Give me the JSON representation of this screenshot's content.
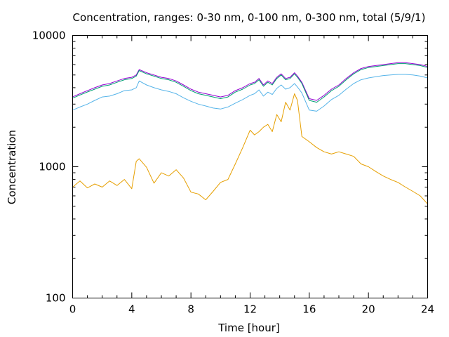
{
  "chart_data": {
    "type": "line",
    "title": "Concentration, ranges: 0-30 nm, 0-100 nm, 0-300 nm, total (5/9/1)",
    "xlabel": "Time [hour]",
    "ylabel": "Concentration",
    "xlim": [
      0,
      24
    ],
    "ylim": [
      100,
      10000
    ],
    "yscale": "log",
    "grid": false,
    "x_ticks": [
      0,
      4,
      8,
      12,
      16,
      20,
      24
    ],
    "x_tick_labels": [
      "0",
      "4",
      "8",
      "12",
      "16",
      "20",
      "24"
    ],
    "y_ticks": [
      100,
      1000,
      10000
    ],
    "y_tick_labels": [
      "100",
      "1000",
      "10000"
    ],
    "x": [
      0,
      0.5,
      1,
      1.5,
      2,
      2.5,
      3,
      3.5,
      4,
      4.3,
      4.5,
      5,
      5.5,
      6,
      6.5,
      7,
      7.5,
      8,
      8.5,
      9,
      9.5,
      10,
      10.5,
      11,
      11.5,
      12,
      12.3,
      12.6,
      12.9,
      13.2,
      13.5,
      13.8,
      14.1,
      14.4,
      14.7,
      15,
      15.2,
      15.5,
      16,
      16.5,
      17,
      17.5,
      18,
      18.5,
      19,
      19.5,
      20,
      20.5,
      21,
      21.5,
      22,
      22.5,
      23,
      23.5,
      24
    ],
    "series": [
      {
        "color": "#9400d3",
        "values": [
          3400,
          3600,
          3800,
          4000,
          4200,
          4300,
          4500,
          4700,
          4800,
          5000,
          5500,
          5200,
          5000,
          4800,
          4700,
          4500,
          4200,
          3900,
          3700,
          3600,
          3500,
          3400,
          3500,
          3800,
          4000,
          4300,
          4400,
          4700,
          4200,
          4500,
          4300,
          4800,
          5100,
          4700,
          4800,
          5200,
          4900,
          4400,
          3300,
          3200,
          3500,
          3900,
          4200,
          4700,
          5200,
          5600,
          5800,
          5900,
          6000,
          6100,
          6200,
          6200,
          6100,
          6000,
          5800
        ]
      },
      {
        "color": "#009e73",
        "values": [
          3330,
          3520,
          3710,
          3900,
          4100,
          4200,
          4400,
          4600,
          4700,
          4900,
          5400,
          5100,
          4900,
          4700,
          4600,
          4400,
          4100,
          3800,
          3600,
          3500,
          3400,
          3300,
          3400,
          3700,
          3900,
          4200,
          4300,
          4600,
          4100,
          4400,
          4200,
          4700,
          5000,
          4600,
          4700,
          5100,
          4800,
          4300,
          3200,
          3100,
          3400,
          3800,
          4100,
          4600,
          5100,
          5500,
          5700,
          5800,
          5900,
          6000,
          6100,
          6100,
          6000,
          5900,
          5700
        ]
      },
      {
        "color": "#56b4e9",
        "values": [
          2700,
          2850,
          3000,
          3200,
          3400,
          3450,
          3600,
          3800,
          3850,
          4000,
          4500,
          4200,
          4000,
          3850,
          3750,
          3600,
          3350,
          3150,
          3000,
          2900,
          2800,
          2750,
          2850,
          3050,
          3250,
          3500,
          3600,
          3850,
          3450,
          3700,
          3550,
          3950,
          4200,
          3900,
          4000,
          4300,
          4050,
          3650,
          2700,
          2650,
          2900,
          3250,
          3500,
          3900,
          4300,
          4600,
          4750,
          4850,
          4950,
          5000,
          5050,
          5050,
          5000,
          4900,
          4750
        ]
      },
      {
        "color": "#e69f00",
        "values": [
          700,
          780,
          690,
          740,
          700,
          780,
          720,
          800,
          680,
          1100,
          1150,
          990,
          750,
          900,
          850,
          950,
          820,
          640,
          620,
          560,
          650,
          760,
          800,
          1050,
          1400,
          1900,
          1750,
          1850,
          2000,
          2100,
          1850,
          2500,
          2200,
          3100,
          2700,
          3600,
          3200,
          1700,
          1550,
          1400,
          1300,
          1250,
          1300,
          1250,
          1200,
          1050,
          1000,
          920,
          850,
          800,
          760,
          700,
          650,
          600,
          520
        ]
      }
    ]
  }
}
